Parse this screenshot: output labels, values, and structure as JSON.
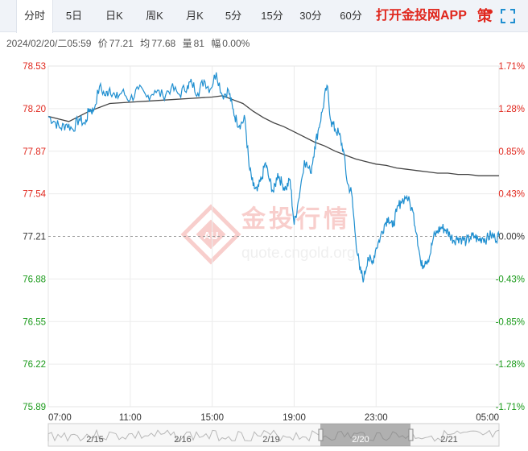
{
  "tabs": [
    {
      "label": "分时",
      "active": true
    },
    {
      "label": "5日",
      "active": false
    },
    {
      "label": "日K",
      "active": false
    },
    {
      "label": "周K",
      "active": false
    },
    {
      "label": "月K",
      "active": false
    },
    {
      "label": "5分",
      "active": false
    },
    {
      "label": "15分",
      "active": false
    },
    {
      "label": "30分",
      "active": false
    },
    {
      "label": "60分",
      "active": false
    }
  ],
  "promo_label": "打开金投网APP",
  "ce_label": "策",
  "info": {
    "datetime": "2024/02/20/二05:59",
    "price_label": "价",
    "price": "77.21",
    "avg_label": "均",
    "avg": "77.68",
    "vol_label": "量",
    "vol": "81",
    "chg_label": "幅",
    "chg": "0.00%"
  },
  "watermark": {
    "logo": "金投行情",
    "url": "quote.cngold.org",
    "mark": "AU"
  },
  "colors": {
    "price_line": "#1f8fd0",
    "avg_line": "#444444",
    "up": "#e0271d",
    "down": "#1a9a1a",
    "neutral": "#333333"
  },
  "chart_data": {
    "type": "line",
    "title": "",
    "xlabel": "",
    "ylabel": "",
    "ylim": [
      75.89,
      78.53
    ],
    "y_ticks": [
      "78.53",
      "78.20",
      "77.87",
      "77.54",
      "77.21",
      "76.88",
      "76.55",
      "76.22",
      "75.89"
    ],
    "y_values": [
      78.53,
      78.2,
      77.87,
      77.54,
      77.21,
      76.88,
      76.55,
      76.22,
      75.89
    ],
    "pct_ticks": [
      "1.71%",
      "1.28%",
      "0.85%",
      "0.43%",
      "0.00%",
      "-0.43%",
      "-0.85%",
      "-1.28%",
      "-1.71%"
    ],
    "x_ticks": [
      "07:00",
      "11:00",
      "15:00",
      "19:00",
      "23:00",
      "05:00"
    ],
    "x_tick_hours": [
      0,
      4,
      8,
      12,
      16,
      22
    ],
    "x_range_hours": [
      0,
      22
    ],
    "prev_close": 77.21,
    "series": [
      {
        "key": "price",
        "x_hours": [
          0.0,
          0.3,
          0.6,
          0.9,
          1.2,
          1.5,
          1.8,
          2.0,
          2.2,
          2.5,
          2.8,
          3.0,
          3.3,
          3.6,
          4.0,
          4.4,
          4.8,
          5.2,
          5.6,
          6.0,
          6.4,
          6.8,
          7.0,
          7.3,
          7.6,
          7.9,
          8.2,
          8.5,
          8.8,
          9.0,
          9.2,
          9.4,
          9.6,
          9.8,
          10.0,
          10.2,
          10.4,
          10.6,
          10.8,
          11.0,
          11.2,
          11.4,
          11.6,
          11.8,
          12.0,
          12.2,
          12.5,
          12.8,
          13.0,
          13.2,
          13.4,
          13.6,
          13.8,
          14.0,
          14.2,
          14.4,
          14.6,
          14.8,
          15.0,
          15.2,
          15.4,
          15.6,
          15.8,
          16.0,
          16.2,
          16.4,
          16.6,
          16.8,
          17.0,
          17.2,
          17.5,
          17.8,
          18.0,
          18.2,
          18.4,
          18.6,
          18.8,
          19.0,
          19.2,
          19.4,
          19.6,
          19.8,
          20.0,
          20.2,
          20.4,
          20.6,
          20.8,
          21.0,
          21.2,
          21.4,
          21.6,
          21.8,
          22.0
        ],
        "values": [
          78.14,
          78.1,
          78.05,
          78.08,
          78.04,
          78.12,
          78.08,
          78.2,
          78.18,
          78.37,
          78.3,
          78.36,
          78.28,
          78.33,
          78.27,
          78.35,
          78.29,
          78.34,
          78.3,
          78.36,
          78.31,
          78.38,
          78.4,
          78.32,
          78.42,
          78.35,
          78.48,
          78.3,
          78.34,
          78.2,
          78.1,
          78.08,
          78.12,
          77.75,
          77.6,
          77.56,
          77.65,
          77.78,
          77.64,
          77.55,
          77.7,
          77.62,
          77.58,
          77.65,
          77.3,
          77.48,
          77.8,
          77.7,
          77.9,
          78.05,
          78.2,
          78.38,
          78.1,
          78.04,
          78.0,
          77.88,
          77.62,
          77.55,
          77.2,
          76.95,
          76.88,
          77.05,
          77.0,
          77.12,
          77.2,
          77.3,
          77.36,
          77.28,
          77.4,
          77.48,
          77.52,
          77.4,
          77.22,
          76.98,
          77.02,
          77.05,
          77.2,
          77.25,
          77.28,
          77.26,
          77.22,
          77.18,
          77.2,
          77.19,
          77.17,
          77.2,
          77.21,
          77.18,
          77.2,
          77.19,
          77.22,
          77.2,
          77.21
        ]
      },
      {
        "key": "avg",
        "x_hours": [
          0.0,
          1.0,
          2.0,
          3.0,
          4.0,
          5.0,
          6.0,
          7.0,
          8.0,
          8.5,
          9.0,
          9.5,
          10.0,
          10.5,
          11.0,
          11.5,
          12.0,
          12.5,
          13.0,
          13.5,
          14.0,
          14.5,
          15.0,
          15.5,
          16.0,
          16.5,
          17.0,
          17.5,
          18.0,
          18.5,
          19.0,
          19.5,
          20.0,
          20.5,
          21.0,
          21.5,
          22.0
        ],
        "values": [
          78.14,
          78.1,
          78.18,
          78.24,
          78.25,
          78.26,
          78.27,
          78.28,
          78.29,
          78.3,
          78.27,
          78.24,
          78.18,
          78.13,
          78.09,
          78.06,
          78.02,
          77.98,
          77.94,
          77.91,
          77.87,
          77.84,
          77.81,
          77.79,
          77.77,
          77.76,
          77.74,
          77.73,
          77.72,
          77.71,
          77.7,
          77.7,
          77.69,
          77.69,
          77.68,
          77.68,
          77.68
        ]
      }
    ],
    "overview": {
      "date_labels": [
        "2/15",
        "2/16",
        "2/19",
        "2/20",
        "2/21"
      ],
      "selected": "2/20"
    }
  }
}
